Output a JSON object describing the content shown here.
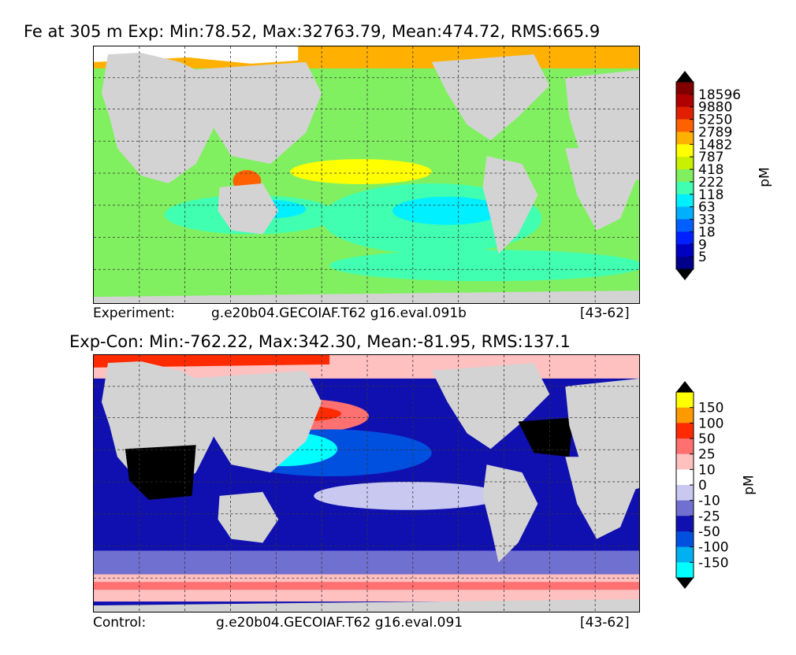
{
  "panels": [
    {
      "title": "Fe at 305 m Exp: Min:78.52, Max:32763.79, Mean:474.72, RMS:665.9",
      "caption_left": "Experiment:",
      "caption_case": "g.e20b04.GECOIAF.T62 g16.eval.091b",
      "caption_years": "[43-62]",
      "colorbar": {
        "unit": "pM",
        "ticks": [
          "18596",
          "9880",
          "5250",
          "2789",
          "1482",
          "787",
          "418",
          "222",
          "118",
          "63",
          "33",
          "18",
          "9",
          "5"
        ],
        "colors": [
          "#800000",
          "#b00000",
          "#e02000",
          "#ff6000",
          "#ffb000",
          "#ffff00",
          "#c8f000",
          "#80f060",
          "#40ffb0",
          "#00f0ff",
          "#00b0ff",
          "#0060ff",
          "#0020ff",
          "#0000c0",
          "#00008a"
        ],
        "over_color": "#000000",
        "under_color": "#000000"
      }
    },
    {
      "title": "Exp-Con: Min:-762.22, Max:342.30, Mean:-81.95, RMS:137.1",
      "caption_left": "Control:",
      "caption_case": "g.e20b04.GECOIAF.T62 g16.eval.091",
      "caption_years": "[43-62]",
      "colorbar": {
        "unit": "pM",
        "ticks": [
          "150",
          "100",
          "50",
          "25",
          "10",
          "0",
          "-10",
          "-25",
          "-50",
          "-100",
          "-150"
        ],
        "colors": [
          "#ffff00",
          "#ff9900",
          "#ff2a00",
          "#ff7070",
          "#ffc0c0",
          "#ffffff",
          "#c8c8f0",
          "#7070d0",
          "#1010b0",
          "#0050e0",
          "#00b0f0",
          "#00ffff"
        ],
        "over_color": "#000000",
        "under_color": "#000000"
      }
    }
  ],
  "chart_data": [
    {
      "type": "heatmap",
      "title": "Fe at 305 m Exp: Min:78.52, Max:32763.79, Mean:474.72, RMS:665.9",
      "variable": "Fe at 305 m",
      "stats": {
        "min": 78.52,
        "max": 32763.79,
        "mean": 474.72,
        "rms": 665.9
      },
      "colorbar_unit": "pM",
      "colorbar_levels": [
        5,
        9,
        18,
        33,
        63,
        118,
        222,
        418,
        787,
        1482,
        2789,
        5250,
        9880,
        18596
      ],
      "grid": true
    },
    {
      "type": "heatmap",
      "title": "Exp-Con: Min:-762.22, Max:342.30, Mean:-81.95, RMS:137.1",
      "stats": {
        "min": -762.22,
        "max": 342.3,
        "mean": -81.95,
        "rms": 137.1
      },
      "colorbar_unit": "pM",
      "colorbar_levels": [
        -150,
        -100,
        -50,
        -25,
        -10,
        0,
        10,
        25,
        50,
        100,
        150
      ],
      "grid": true
    }
  ]
}
